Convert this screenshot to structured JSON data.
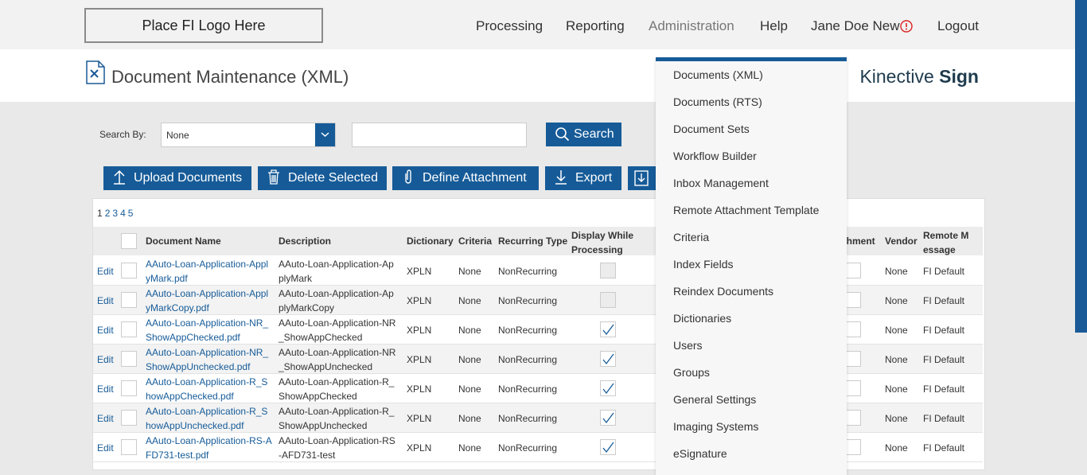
{
  "header": {
    "logo": "Place FI Logo Here",
    "nav": [
      "Processing",
      "Reporting",
      "Administration",
      "Help",
      "Jane Doe New",
      "Logout"
    ]
  },
  "page_title": "Document Maintenance (XML)",
  "brand": {
    "light": "Kinective",
    "bold": "Sign"
  },
  "search": {
    "label": "Search By:",
    "select": "None",
    "button": "Search"
  },
  "toolbar": [
    "Upload Documents",
    "Delete Selected",
    "Define Attachment",
    "Export"
  ],
  "pagination": [
    "1",
    "2",
    "3",
    "4",
    "5"
  ],
  "table": {
    "columns": {
      "name": "Document Name",
      "description": "Description",
      "dictionary": "Dictionary",
      "criteria": "Criteria",
      "recurring": "Recurring Type",
      "display": "Display While Processing",
      "attachment": "chment",
      "vendor": "Vendor",
      "remote": "Remote Message"
    },
    "rows": [
      {
        "edit": "Edit",
        "name": "AAuto-Loan-Application-ApplyMark.pdf",
        "description": "AAuto-Loan-Application-ApplyMark",
        "dictionary": "XPLN",
        "criteria": "None",
        "recurring": "NonRecurring",
        "display": false,
        "vendor": "None",
        "remote": "FI Default"
      },
      {
        "edit": "Edit",
        "name": "AAuto-Loan-Application-ApplyMarkCopy.pdf",
        "description": "AAuto-Loan-Application-ApplyMarkCopy",
        "dictionary": "XPLN",
        "criteria": "None",
        "recurring": "NonRecurring",
        "display": false,
        "vendor": "None",
        "remote": "FI Default"
      },
      {
        "edit": "Edit",
        "name": "AAuto-Loan-Application-NR_ShowAppChecked.pdf",
        "description": "AAuto-Loan-Application-NR_ShowAppChecked",
        "dictionary": "XPLN",
        "criteria": "None",
        "recurring": "NonRecurring",
        "display": true,
        "vendor": "None",
        "remote": "FI Default"
      },
      {
        "edit": "Edit",
        "name": "AAuto-Loan-Application-NR_ShowAppUnchecked.pdf",
        "description": "AAuto-Loan-Application-NR_ShowAppUnchecked",
        "dictionary": "XPLN",
        "criteria": "None",
        "recurring": "NonRecurring",
        "display": true,
        "vendor": "None",
        "remote": "FI Default"
      },
      {
        "edit": "Edit",
        "name": "AAuto-Loan-Application-R_ShowAppChecked.pdf",
        "description": "AAuto-Loan-Application-R_ShowAppChecked",
        "dictionary": "XPLN",
        "criteria": "None",
        "recurring": "NonRecurring",
        "display": true,
        "vendor": "None",
        "remote": "FI Default"
      },
      {
        "edit": "Edit",
        "name": "AAuto-Loan-Application-R_ShowAppUnchecked.pdf",
        "description": "AAuto-Loan-Application-R_ShowAppUnchecked",
        "dictionary": "XPLN",
        "criteria": "None",
        "recurring": "NonRecurring",
        "display": true,
        "vendor": "None",
        "remote": "FI Default"
      },
      {
        "edit": "Edit",
        "name": "AAuto-Loan-Application-RS-AFD731-test.pdf",
        "description": "AAuto-Loan-Application-RS-AFD731-test",
        "dictionary": "XPLN",
        "criteria": "None",
        "recurring": "NonRecurring",
        "display": true,
        "vendor": "None",
        "remote": "FI Default"
      }
    ]
  },
  "admin_menu": [
    "Documents (XML)",
    "Documents (RTS)",
    "Document Sets",
    "Workflow Builder",
    "Inbox Management",
    "Remote Attachment Template",
    "Criteria",
    "Index Fields",
    "Reindex Documents",
    "Dictionaries",
    "Users",
    "Groups",
    "General Settings",
    "Imaging Systems",
    "eSignature"
  ]
}
